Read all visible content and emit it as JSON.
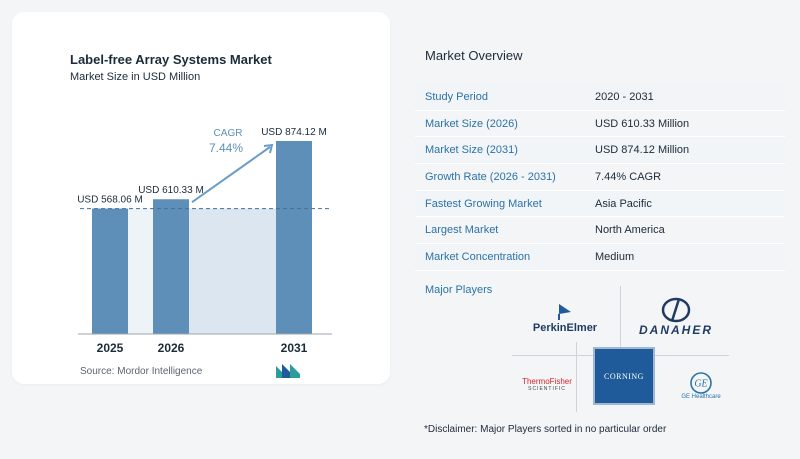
{
  "chart_data": {
    "type": "bar",
    "title": "Label-free Array Systems Market",
    "subtitle": "Market Size in USD Million",
    "categories": [
      "2025",
      "2026",
      "2031"
    ],
    "values": [
      568.06,
      610.33,
      874.12
    ],
    "data_labels": [
      "USD 568.06 M",
      "USD 610.33 M",
      "USD 874.12 M"
    ],
    "annotation": {
      "label": "CAGR",
      "value": "7.44%"
    },
    "ylim": [
      0,
      874.12
    ],
    "grid": false
  },
  "source": "Source:  Mordor Intelligence",
  "overview": {
    "title": "Market Overview",
    "rows": [
      {
        "label": "Study Period",
        "value": "2020 - 2031"
      },
      {
        "label": "Market Size (2026)",
        "value": "USD 610.33 Million"
      },
      {
        "label": "Market Size (2031)",
        "value": "USD 874.12 Million"
      },
      {
        "label": "Growth Rate (2026 - 2031)",
        "value": "7.44% CAGR"
      },
      {
        "label": "Fastest Growing Market",
        "value": "Asia Pacific"
      },
      {
        "label": "Largest Market",
        "value": "North America"
      },
      {
        "label": "Market Concentration",
        "value": "Medium"
      }
    ],
    "players_title": "Major Players",
    "players": {
      "perkinelmer": "PerkinElmer",
      "danaher": "DANAHER",
      "thermofisher": "ThermoFisher",
      "thermofisher_sub": "SCIENTIFIC",
      "corning": "CORNING",
      "ge": "GE Healthcare"
    },
    "disclaimer": "*Disclaimer: Major Players sorted in no particular order"
  },
  "colors": {
    "bar": "#5e8fb8",
    "area": "#dbe6f0",
    "arrow": "#6b9cc6",
    "accent": "#2a72a8"
  }
}
